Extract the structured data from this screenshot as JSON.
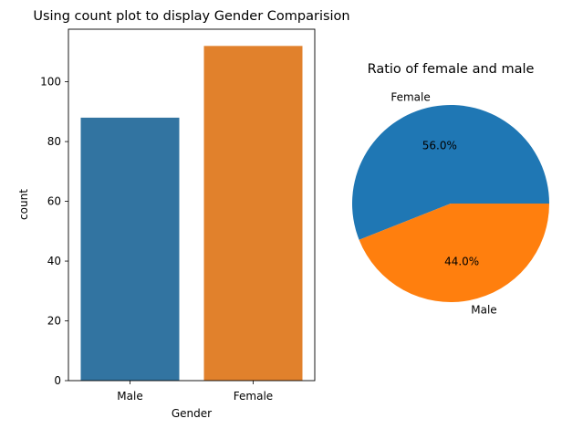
{
  "chart_data": [
    {
      "type": "bar",
      "title": "Using count plot to display Gender Comparision",
      "xlabel": "Gender",
      "ylabel": "count",
      "categories": [
        "Male",
        "Female"
      ],
      "values": [
        88,
        112
      ],
      "ylim": [
        0,
        117.6
      ],
      "yticks": [
        0,
        20,
        40,
        60,
        80,
        100
      ],
      "colors": [
        "#3274a1",
        "#e1812c"
      ],
      "grid": false
    },
    {
      "type": "pie",
      "title": "Ratio of female and male",
      "labels": [
        "Female",
        "Male"
      ],
      "values": [
        56.0,
        44.0
      ],
      "pct_labels": [
        "56.0%",
        "44.0%"
      ],
      "colors": [
        "#1f77b4",
        "#ff7f0e"
      ]
    }
  ]
}
